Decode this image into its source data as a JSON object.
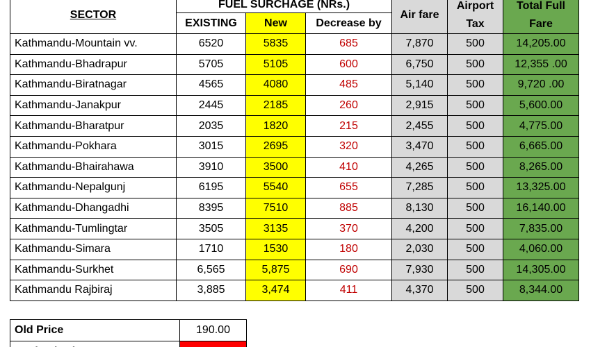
{
  "header": {
    "sector": "SECTOR",
    "fuel_surcharge": "FUEL SURCHAGE (NRs.)",
    "existing": "EXISTING",
    "new": "New",
    "decrease": "Decrease by",
    "air_fare": "Air fare",
    "airport_tax": "Airport Tax",
    "total": "Total Full Fare"
  },
  "rows": [
    [
      "Kathmandu-Mountain vv.",
      "6520",
      "5835",
      "685",
      "7,870",
      "500",
      "14,205.00"
    ],
    [
      "Kathmandu-Bhadrapur",
      "5705",
      "5105",
      "600",
      "6,750",
      "500",
      "12,355 .00"
    ],
    [
      "Kathmandu-Biratnagar",
      "4565",
      "4080",
      "485",
      "5,140",
      "500",
      "9,720 .00"
    ],
    [
      "Kathmandu-Janakpur",
      "2445",
      "2185",
      "260",
      "2,915",
      "500",
      "5,600.00"
    ],
    [
      "Kathmandu-Bharatpur",
      "2035",
      "1820",
      "215",
      "2,455",
      "500",
      "4,775.00"
    ],
    [
      "Kathmandu-Pokhara",
      "3015",
      "2695",
      "320",
      "3,470",
      "500",
      "6,665.00"
    ],
    [
      "Kathmandu-Bhairahawa",
      "3910",
      "3500",
      "410",
      "4,265",
      "500",
      "8,265.00"
    ],
    [
      "Kathmandu-Nepalgunj",
      "6195",
      "5540",
      "655",
      "7,285",
      "500",
      "13,325.00"
    ],
    [
      "Kathmandu-Dhangadhi",
      "8395",
      "7510",
      "885",
      "8,130",
      "500",
      "16,140.00"
    ],
    [
      "Kathmandu-Tumlingtar",
      "3505",
      "3135",
      "370",
      "4,200",
      "500",
      "7,835.00"
    ],
    [
      "Kathmandu-Simara",
      "1710",
      "1530",
      "180",
      "2,030",
      "500",
      "4,060.00"
    ],
    [
      "Kathmandu-Surkhet",
      "6,565",
      "5,875",
      "690",
      "7,930",
      "500",
      "14,305.00"
    ],
    [
      "Kathmandu Rajbiraj",
      "3,885",
      "3,474",
      "411",
      "4,370",
      "500",
      "8,344.00"
    ]
  ],
  "summary": {
    "rows": [
      [
        "Old Price",
        "190.00"
      ],
      [
        "Revised Price"
      ]
    ]
  }
}
